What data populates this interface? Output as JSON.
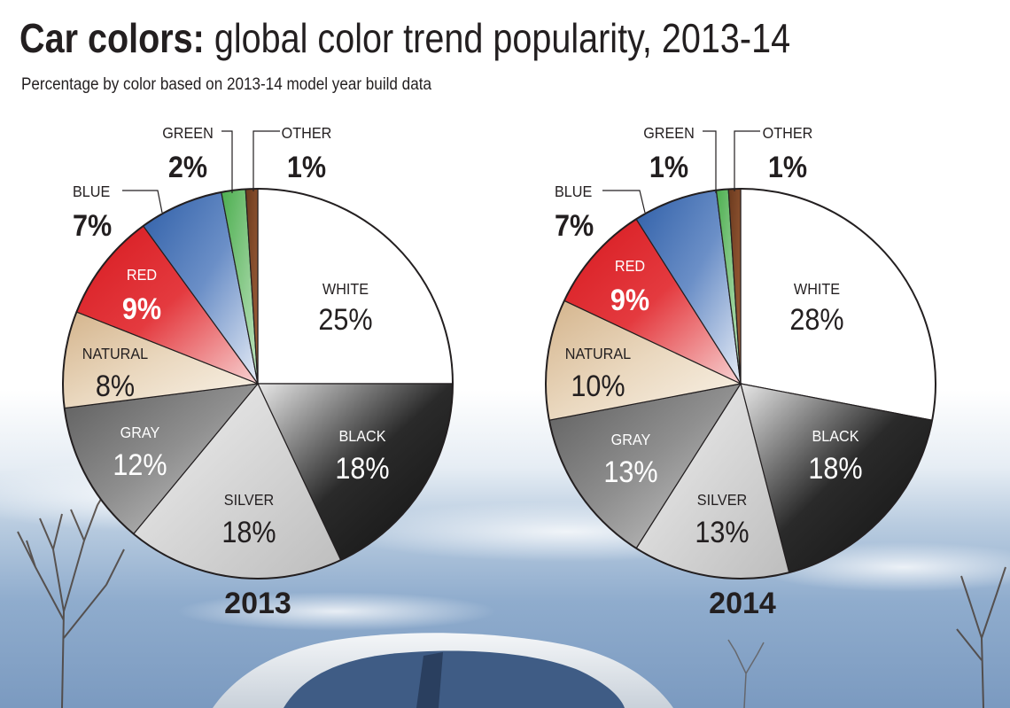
{
  "title_bold": "Car colors:",
  "title_rest": " global color trend popularity, 2013-14",
  "subtitle": "Percentage by color based on 2013-14 model year build data",
  "chart_data": [
    {
      "type": "pie",
      "title": "2013",
      "slices": [
        {
          "label": "WHITE",
          "value": 25,
          "display": "25%"
        },
        {
          "label": "BLACK",
          "value": 18,
          "display": "18%"
        },
        {
          "label": "SILVER",
          "value": 18,
          "display": "18%"
        },
        {
          "label": "GRAY",
          "value": 12,
          "display": "12%"
        },
        {
          "label": "NATURAL",
          "value": 8,
          "display": "8%"
        },
        {
          "label": "RED",
          "value": 9,
          "display": "9%"
        },
        {
          "label": "BLUE",
          "value": 7,
          "display": "7%"
        },
        {
          "label": "GREEN",
          "value": 2,
          "display": "2%"
        },
        {
          "label": "OTHER",
          "value": 1,
          "display": "1%"
        }
      ]
    },
    {
      "type": "pie",
      "title": "2014",
      "slices": [
        {
          "label": "WHITE",
          "value": 28,
          "display": "28%"
        },
        {
          "label": "BLACK",
          "value": 18,
          "display": "18%"
        },
        {
          "label": "SILVER",
          "value": 13,
          "display": "13%"
        },
        {
          "label": "GRAY",
          "value": 13,
          "display": "13%"
        },
        {
          "label": "NATURAL",
          "value": 10,
          "display": "10%"
        },
        {
          "label": "RED",
          "value": 9,
          "display": "9%"
        },
        {
          "label": "BLUE",
          "value": 7,
          "display": "7%"
        },
        {
          "label": "GREEN",
          "value": 1,
          "display": "1%"
        },
        {
          "label": "OTHER",
          "value": 1,
          "display": "1%"
        }
      ]
    }
  ]
}
